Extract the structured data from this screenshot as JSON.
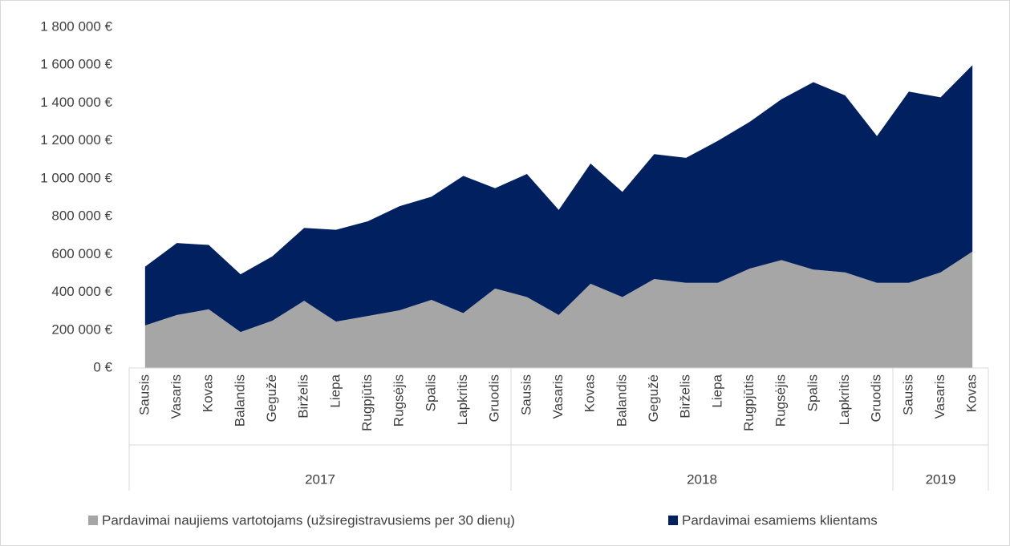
{
  "chart_data": {
    "type": "area",
    "stacked": true,
    "categories": [
      "Sausis",
      "Vasaris",
      "Kovas",
      "Balandis",
      "Gegužė",
      "Birželis",
      "Liepa",
      "Rugpjūtis",
      "Rugsėjis",
      "Spalis",
      "Lapkritis",
      "Gruodis",
      "Sausis",
      "Vasaris",
      "Kovas",
      "Balandis",
      "Gegužė",
      "Birželis",
      "Liepa",
      "Rugpjūtis",
      "Rugsėjis",
      "Spalis",
      "Lapkritis",
      "Gruodis",
      "Sausis",
      "Vasaris",
      "Kovas"
    ],
    "year_groups": [
      {
        "label": "2017",
        "months": 12
      },
      {
        "label": "2018",
        "months": 12
      },
      {
        "label": "2019",
        "months": 3
      }
    ],
    "series": [
      {
        "name": "Pardavimai naujiems vartotojams (užsiregistravusiems per 30 dienų)",
        "color": "#a6a6a6",
        "values": [
          225000,
          280000,
          310000,
          190000,
          250000,
          355000,
          245000,
          275000,
          305000,
          360000,
          290000,
          420000,
          375000,
          280000,
          445000,
          375000,
          470000,
          450000,
          450000,
          525000,
          570000,
          520000,
          505000,
          450000,
          450000,
          505000,
          615000
        ]
      },
      {
        "name": "Pardavimai esamiems klientams",
        "color": "#002060",
        "values": [
          310000,
          380000,
          340000,
          305000,
          340000,
          385000,
          485000,
          500000,
          550000,
          545000,
          725000,
          530000,
          650000,
          555000,
          635000,
          555000,
          660000,
          660000,
          750000,
          775000,
          850000,
          990000,
          935000,
          775000,
          1010000,
          925000,
          985000
        ]
      }
    ],
    "ylim": [
      0,
      1800000
    ],
    "yticks": [
      {
        "value": 0,
        "label": "0 €"
      },
      {
        "value": 200000,
        "label": "200 000 €"
      },
      {
        "value": 400000,
        "label": "400 000 €"
      },
      {
        "value": 600000,
        "label": "600 000 €"
      },
      {
        "value": 800000,
        "label": "800 000 €"
      },
      {
        "value": 1000000,
        "label": "1 000 000 €"
      },
      {
        "value": 1200000,
        "label": "1 200 000 €"
      },
      {
        "value": 1400000,
        "label": "1 400 000 €"
      },
      {
        "value": 1600000,
        "label": "1 600 000 €"
      },
      {
        "value": 1800000,
        "label": "1 800 000 €"
      }
    ],
    "legend": "bottom"
  }
}
